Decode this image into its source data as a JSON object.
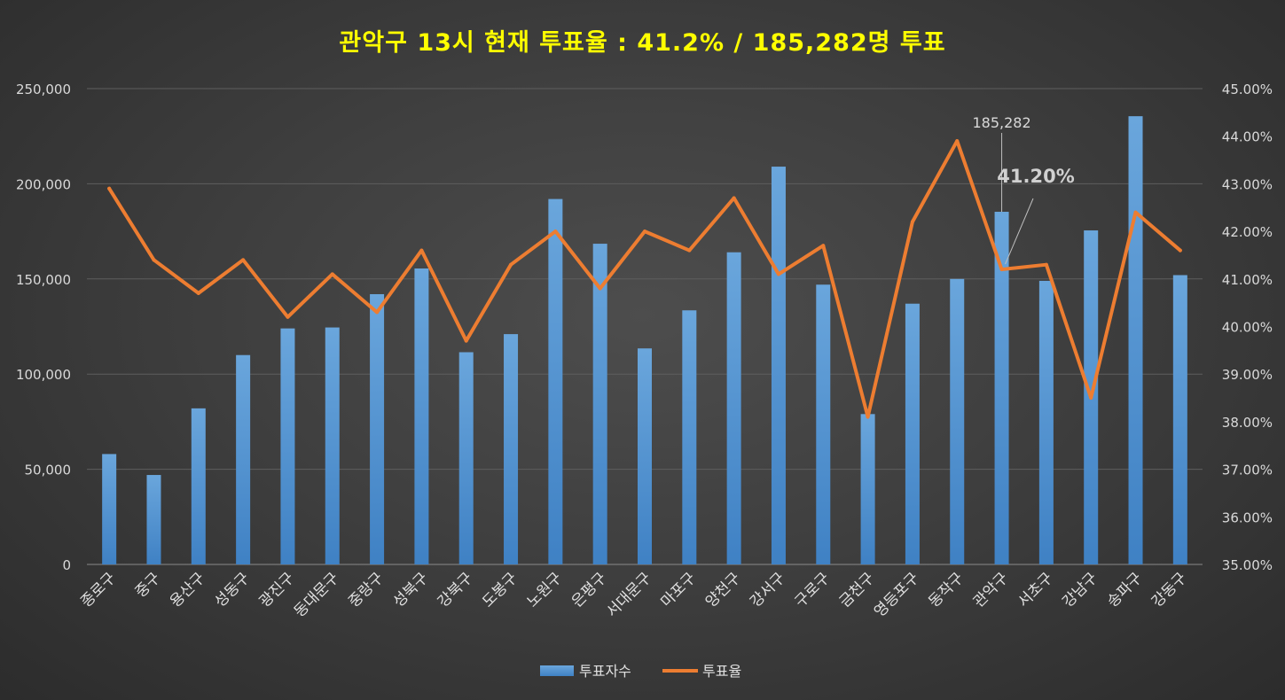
{
  "chart_data": {
    "type": "bar+line",
    "title": "관악구 13시 현재 투표율 : 41.2% / 185,282명 투표",
    "categories": [
      "종로구",
      "중구",
      "용산구",
      "성동구",
      "광진구",
      "동대문구",
      "중랑구",
      "성북구",
      "강북구",
      "도봉구",
      "노원구",
      "은평구",
      "서대문구",
      "마포구",
      "양천구",
      "강서구",
      "구로구",
      "금천구",
      "영등포구",
      "동작구",
      "관악구",
      "서초구",
      "강남구",
      "송파구",
      "강동구"
    ],
    "series": [
      {
        "name": "투표자수",
        "type": "bar",
        "axis": "left",
        "color": "#5b9bd5",
        "values": [
          58000,
          47000,
          82000,
          110000,
          124000,
          124500,
          142000,
          155500,
          111500,
          121000,
          192000,
          168500,
          113500,
          133500,
          164000,
          209000,
          147000,
          79000,
          137000,
          150000,
          185282,
          149000,
          175500,
          235500,
          152000
        ]
      },
      {
        "name": "투표율",
        "type": "line",
        "axis": "right",
        "color": "#ed7d31",
        "values": [
          42.9,
          41.4,
          40.7,
          41.4,
          40.2,
          41.1,
          40.3,
          41.6,
          39.7,
          41.3,
          42.0,
          40.8,
          42.0,
          41.6,
          42.7,
          41.1,
          41.7,
          38.1,
          42.2,
          43.9,
          41.2,
          41.3,
          38.5,
          42.4,
          41.6
        ]
      }
    ],
    "y_left": {
      "min": 0,
      "max": 250000,
      "tick_labels": [
        "0",
        "50,000",
        "100,000",
        "150,000",
        "200,000",
        "250,000"
      ]
    },
    "y_right": {
      "min": 35,
      "max": 45,
      "tick_labels": [
        "35.00%",
        "36.00%",
        "37.00%",
        "38.00%",
        "39.00%",
        "40.00%",
        "41.00%",
        "42.00%",
        "43.00%",
        "44.00%",
        "45.00%"
      ]
    },
    "grid": true,
    "legend_position": "bottom",
    "annotations": [
      {
        "category": "관악구",
        "text": "185,282"
      },
      {
        "category": "관악구",
        "text": "41.20%"
      }
    ]
  }
}
